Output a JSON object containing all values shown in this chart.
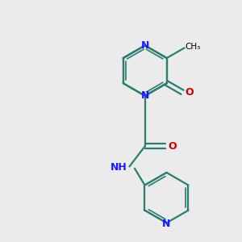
{
  "background_color": "#ebebeb",
  "bond_color": "#2d7d6e",
  "n_color": "#1a1aff",
  "o_color": "#cc0000",
  "text_color": "#000000",
  "lw": 1.6,
  "figsize": [
    3.0,
    3.0
  ],
  "dpi": 100,
  "xlim": [
    0,
    10
  ],
  "ylim": [
    0,
    10
  ]
}
